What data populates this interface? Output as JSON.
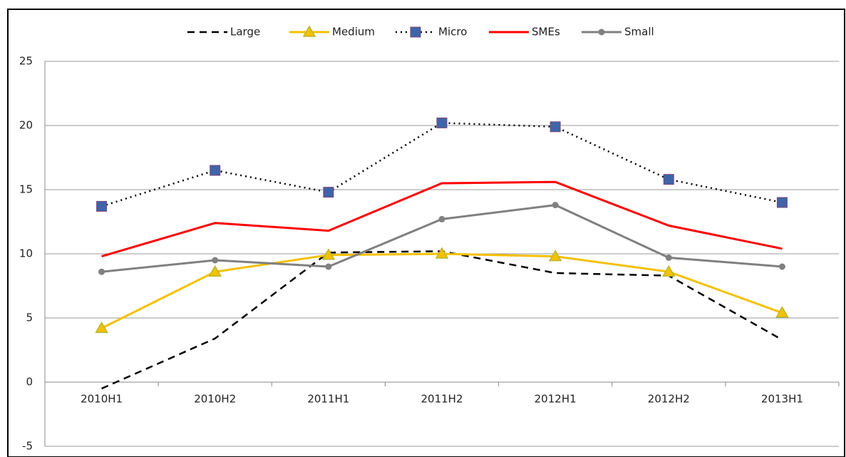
{
  "chart_data": {
    "type": "line",
    "categories": [
      "2010H1",
      "2010H2",
      "2011H1",
      "2011H2",
      "2012H1",
      "2012H2",
      "2013H1"
    ],
    "series": [
      {
        "name": "Large",
        "color": "#000000",
        "dash": "dashed",
        "marker": "none",
        "values": [
          -0.5,
          3.4,
          10.1,
          10.2,
          8.5,
          8.3,
          3.3
        ]
      },
      {
        "name": "Medium",
        "color": "#f5c000",
        "dash": "solid",
        "marker": "triangle",
        "marker_color": "#b8b830",
        "values": [
          4.2,
          8.6,
          9.9,
          10.0,
          9.8,
          8.6,
          5.4
        ]
      },
      {
        "name": "Micro",
        "color": "#000000",
        "dash": "dotted",
        "marker": "square",
        "marker_color": "#3f64a8",
        "values": [
          13.7,
          16.5,
          14.8,
          20.2,
          19.9,
          15.8,
          14.0
        ]
      },
      {
        "name": "SMEs",
        "color": "#ff0000",
        "dash": "solid",
        "marker": "none",
        "values": [
          9.8,
          12.4,
          11.8,
          15.5,
          15.6,
          12.2,
          10.4
        ]
      },
      {
        "name": "Small",
        "color": "#808080",
        "dash": "solid",
        "marker": "circle",
        "marker_color": "#808080",
        "values": [
          8.6,
          9.5,
          9.0,
          12.7,
          13.8,
          9.7,
          9.0
        ]
      }
    ],
    "ylim": [
      -5,
      25
    ],
    "yticks": [
      -5,
      0,
      5,
      10,
      15,
      20,
      25
    ],
    "grid": true,
    "legend": "top"
  }
}
